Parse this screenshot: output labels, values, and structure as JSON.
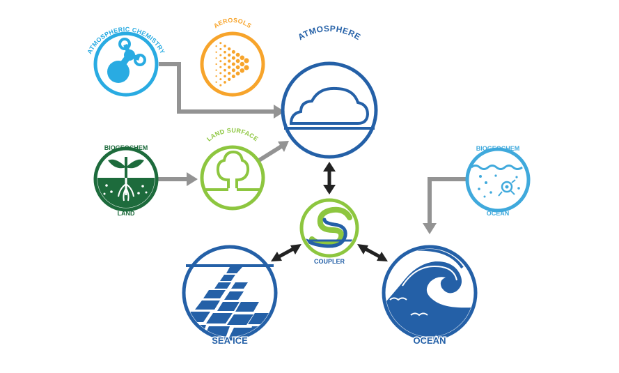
{
  "colors": {
    "atm_chem": "#29abe2",
    "aerosols": "#f7a42b",
    "navy": "#2460a7",
    "green": "#1d6b3c",
    "lime": "#8dc63f",
    "light_blue": "#3fa9dc",
    "arrow_gray": "#939393",
    "arrow_black": "#222222"
  },
  "nodes": {
    "atm_chem": {
      "label": "ATMOSPHERIC CHEMISTRY",
      "icon": "molecule-icon"
    },
    "aerosols": {
      "label": "AEROSOLS",
      "icon": "spray-icon"
    },
    "atmosphere": {
      "label": "ATMOSPHERE",
      "icon": "cloud-icon"
    },
    "biogeo_land": {
      "label_top": "BIOGEOCHEM",
      "label_bottom": "LAND",
      "icon": "plant-roots-icon"
    },
    "land_surface": {
      "label": "LAND SURFACE",
      "icon": "tree-icon"
    },
    "coupler": {
      "label": "COUPLER",
      "icon": "coupler-swirl-icon"
    },
    "biogeo_ocean": {
      "label_top": "BIOGEOCHEM",
      "label_bottom": "OCEAN",
      "icon": "plankton-icon"
    },
    "sea_ice": {
      "label": "SEA ICE",
      "icon": "ice-floes-icon"
    },
    "ocean": {
      "label": "OCEAN",
      "icon": "wave-icon"
    }
  }
}
